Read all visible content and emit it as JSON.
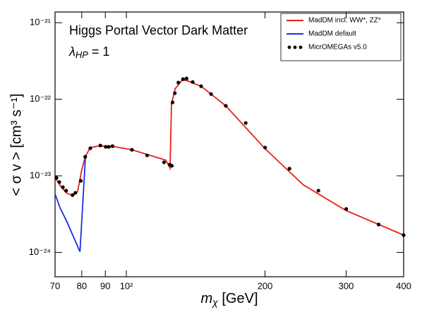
{
  "chart_data": {
    "type": "line",
    "title": "Higgs Portal Vector Dark Matter",
    "annotation": {
      "symbol": "λ",
      "subscript": "HP",
      "text": " = 1"
    },
    "xlabel": {
      "symbol": "m",
      "subscript": "χ",
      "text": " [GeV]"
    },
    "ylabel": "< σ v > [cm³ s⁻¹]",
    "xscale": "log",
    "yscale": "log",
    "xlim": [
      70,
      400
    ],
    "ylim": [
      4.8e-25,
      1.38e-21
    ],
    "xticks": [
      70,
      80,
      90,
      {
        "value": 100,
        "label": "10²"
      },
      200,
      300,
      400
    ],
    "yticks": [
      {
        "value": 1e-24,
        "label": "10⁻²⁴"
      },
      {
        "value": 1e-23,
        "label": "10⁻²³"
      },
      {
        "value": 1e-22,
        "label": "10⁻²²"
      },
      {
        "value": 1e-21,
        "label": "10⁻²¹"
      }
    ],
    "legend": "upper right",
    "series": [
      {
        "name": "MadDM incl. WW*, ZZ*",
        "color": "#e8201c",
        "mode": "line",
        "x": [
          70,
          72,
          74,
          76.5,
          78.3,
          79,
          80,
          81.5,
          83.5,
          87.2,
          93.5,
          102.8,
          121.8,
          124.4,
          125.3,
          127.6,
          132.2,
          135.4,
          145.3,
          164.4,
          199.6,
          242.3,
          299.5,
          400
        ],
        "values": [
          9.5e-24,
          7.3e-24,
          6e-24,
          5.5e-24,
          6.2e-24,
          8e-24,
          1.2e-23,
          1.8e-23,
          2.34e-23,
          2.45e-23,
          2.42e-23,
          2.19e-23,
          1.6e-23,
          1.26e-23,
          8.7e-23,
          1.37e-22,
          1.79e-22,
          1.75e-22,
          1.48e-22,
          8.2e-23,
          2.29e-23,
          7.6e-24,
          3.53e-24,
          1.68e-24
        ]
      },
      {
        "name": "MadDM default",
        "color": "#1a2ee0",
        "mode": "line",
        "x": [
          70,
          71.8,
          74.3,
          79.3,
          81.5
        ],
        "values": [
          5.8e-24,
          3.8e-24,
          2.5e-24,
          1.02e-24,
          1.8e-23
        ]
      },
      {
        "name": "MicrOMEGAs v5.0",
        "color": "#000000",
        "mode": "markers",
        "x": [
          70.5,
          71.5,
          72.8,
          74.0,
          76.4,
          77.5,
          79.6,
          81.4,
          83.5,
          87.8,
          90.2,
          91.6,
          93.3,
          102.8,
          110.9,
          120.7,
          124.2,
          125.5,
          126.0,
          127.4,
          129.7,
          132.7,
          135.1,
          139.3,
          145.3,
          152.7,
          164.4,
          181.6,
          200.1,
          226,
          261.2,
          300.2,
          352.9,
          400
        ],
        "values": [
          9.4e-24,
          8.3e-24,
          7.1e-24,
          6.4e-24,
          5.6e-24,
          6e-24,
          8.6e-24,
          1.77e-23,
          2.29e-23,
          2.49e-23,
          2.39e-23,
          2.39e-23,
          2.44e-23,
          2.19e-23,
          1.85e-23,
          1.5e-23,
          1.4e-23,
          1.35e-23,
          9.1e-23,
          1.2e-22,
          1.65e-22,
          1.83e-22,
          1.87e-22,
          1.68e-22,
          1.48e-22,
          1.17e-22,
          8.2e-23,
          4.9e-23,
          2.34e-23,
          1.24e-23,
          6.4e-24,
          3.69e-24,
          2.31e-24,
          1.68e-24
        ]
      }
    ]
  }
}
